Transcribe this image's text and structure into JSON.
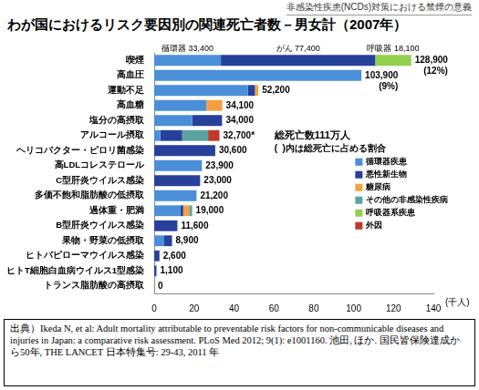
{
  "header": "非感染性疾患(NCDs)対策における禁煙の意義",
  "chart_data": {
    "type": "bar",
    "orientation": "horizontal",
    "stacked": true,
    "title": "わが国におけるリスク要因別の関連死亡者数－男女計（2007年）",
    "x_label": "(千人)",
    "categories": [
      "喫煙",
      "高血圧",
      "運動不足",
      "高血糖",
      "塩分の高摂取",
      "アルコール摂取",
      "ヘリコバクター・ピロリ菌感染",
      "高LDLコレステロール",
      "C型肝炎ウイルス感染",
      "多価不飽和脂肪酸の低摂取",
      "過体重・肥満",
      "B型肝炎ウイルス感染",
      "果物・野菜の低摂取",
      "ヒトパピローマウイルス感染",
      "ヒトT細胞白血病ウイルス1型感染",
      "トランス脂肪酸の高摂取"
    ],
    "series": [
      {
        "name": "循環器疾患",
        "color": "#4a8fd8",
        "values": [
          33.4,
          103.9,
          47.0,
          26.1,
          19.0,
          3.0,
          0,
          23.9,
          0,
          21.2,
          13.0,
          0,
          5.0,
          0,
          0,
          0
        ]
      },
      {
        "name": "悪性新生物",
        "color": "#27419a",
        "values": [
          77.4,
          0,
          3.5,
          0,
          15.0,
          11.0,
          30.6,
          0,
          23.0,
          0,
          1.5,
          11.6,
          3.9,
          2.6,
          1.1,
          0
        ]
      },
      {
        "name": "糖尿病",
        "color": "#f5a040",
        "values": [
          0,
          0,
          1.7,
          8.0,
          0,
          0,
          0,
          0,
          0,
          0,
          3.0,
          0,
          0,
          0,
          0,
          0
        ]
      },
      {
        "name": "その他の非感染性疾病",
        "color": "#5aa3a3",
        "values": [
          0,
          0,
          0,
          0,
          0,
          13.0,
          0,
          0,
          0,
          0,
          1.5,
          0,
          0,
          0,
          0,
          0
        ]
      },
      {
        "name": "呼吸器系疾患",
        "color": "#92d050",
        "values": [
          18.1,
          0,
          0,
          0,
          0,
          0,
          0,
          0,
          0,
          0,
          0,
          0,
          0,
          0,
          0,
          0
        ]
      },
      {
        "name": "外因",
        "color": "#c0392b",
        "values": [
          0,
          0,
          0,
          0,
          0,
          5.7,
          0,
          0,
          0,
          0,
          0,
          0,
          0,
          0,
          0,
          0
        ]
      }
    ],
    "data_labels": true,
    "value_labels": [
      "128,900",
      "103,900",
      "52,200",
      "34,100",
      "34,000",
      "32,700*",
      "30,600",
      "23,900",
      "23,000",
      "21,200",
      "19,000",
      "11,600",
      "8,900",
      "2,600",
      "1,100",
      "0"
    ],
    "segment_labels": [
      {
        "category": "喫煙",
        "series": "循環器疾患",
        "text": "循環器 33,400"
      },
      {
        "category": "喫煙",
        "series": "悪性新生物",
        "text": "がん 77,400"
      },
      {
        "category": "喫煙",
        "series": "呼吸器系疾患",
        "text": "呼吸器 18,100"
      }
    ],
    "annotations": [
      {
        "category": "喫煙",
        "text": "(12%)"
      },
      {
        "category": "高血圧",
        "text": "(9%)"
      }
    ],
    "notes": [
      "総死亡数111万人",
      "(  )内は総死亡に占める割合"
    ],
    "xlim": [
      0,
      140
    ],
    "xticks": [
      0,
      20,
      40,
      60,
      80,
      100,
      120,
      140
    ],
    "grid": false,
    "legend": "right"
  },
  "source": "出典）Ikeda N, et al: Adult mortality attributable to preventable risk factors for non-communicable diseases and injuries in Japan: a comparative risk assessment. PLoS Med 2012; 9(1): e1001160. 池田, ほか. 国民皆保険達成から50年, THE LANCET 日本特集号: 29-43, 2011 年"
}
